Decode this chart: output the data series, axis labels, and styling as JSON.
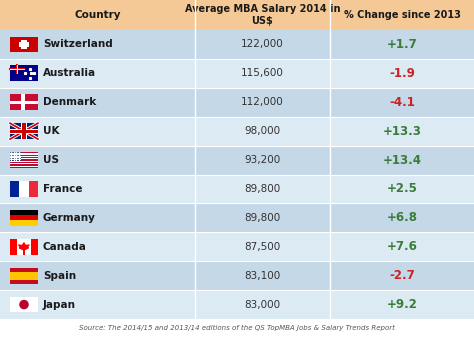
{
  "col2_header": "Average MBA Salary 2014 in\nUS$",
  "col3_header": "% Change since 2013",
  "col1_header": "Country",
  "source": "Source: The 2014/15 and 2013/14 editions of the QS TopMBA Jobs & Salary Trends Report",
  "rows": [
    {
      "country": "Switzerland",
      "salary": "122,000",
      "change": "+1.7",
      "positive": true
    },
    {
      "country": "Australia",
      "salary": "115,600",
      "change": "-1.9",
      "positive": false
    },
    {
      "country": "Denmark",
      "salary": "112,000",
      "change": "-4.1",
      "positive": false
    },
    {
      "country": "UK",
      "salary": "98,000",
      "change": "+13.3",
      "positive": true
    },
    {
      "country": "US",
      "salary": "93,200",
      "change": "+13.4",
      "positive": true
    },
    {
      "country": "France",
      "salary": "89,800",
      "change": "+2.5",
      "positive": true
    },
    {
      "country": "Germany",
      "salary": "89,800",
      "change": "+6.8",
      "positive": true
    },
    {
      "country": "Canada",
      "salary": "87,500",
      "change": "+7.6",
      "positive": true
    },
    {
      "country": "Spain",
      "salary": "83,100",
      "change": "-2.7",
      "positive": false
    },
    {
      "country": "Japan",
      "salary": "83,000",
      "change": "+9.2",
      "positive": true
    }
  ],
  "header_bg": "#f5c995",
  "row_bg_odd": "#c5d8e8",
  "row_bg_even": "#dceaf4",
  "positive_color": "#3a7d3a",
  "negative_color": "#cc2222",
  "salary_color": "#333333",
  "country_color": "#1a1a1a",
  "header_color": "#1a1a1a",
  "source_color": "#555555",
  "figsize": [
    4.74,
    3.37
  ],
  "dpi": 100
}
